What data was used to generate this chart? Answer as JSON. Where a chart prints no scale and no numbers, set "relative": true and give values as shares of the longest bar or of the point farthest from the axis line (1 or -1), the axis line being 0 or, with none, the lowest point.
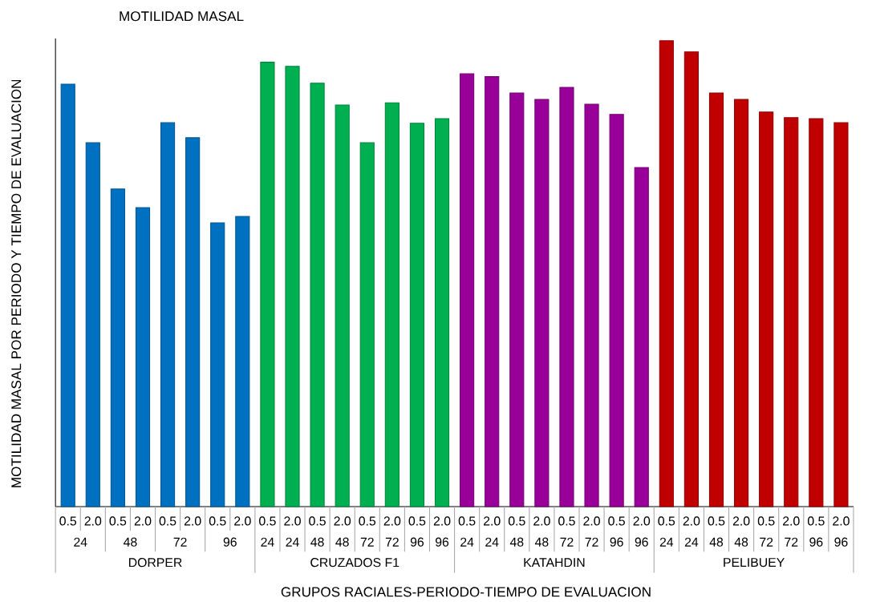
{
  "chart_data": {
    "type": "bar",
    "title": "MOTILIDAD MASAL",
    "xlabel": "GRUPOS RACIALES-PERIODO-TIEMPO DE EVALUACION",
    "ylabel": "MOTILIDAD MASAL POR PERIODO Y TIEMPO DE EVALUACION",
    "relative": true,
    "categories": [
      "0.5",
      "2.0",
      "0.5",
      "2.0",
      "0.5",
      "2.0",
      "0.5",
      "2.0",
      "0.5",
      "2.0",
      "0.5",
      "2.0",
      "0.5",
      "2.0",
      "0.5",
      "2.0",
      "0.5",
      "2.0",
      "0.5",
      "2.0",
      "0.5",
      "2.0",
      "0.5",
      "2.0",
      "0.5",
      "2.0",
      "0.5",
      "2.0",
      "0.5",
      "2.0",
      "0.5",
      "2.0"
    ],
    "annotations": [
      "24",
      "48",
      "72",
      "96",
      "24",
      "24",
      "48",
      "48",
      "72",
      "72",
      "96",
      "96",
      "24",
      "24",
      "48",
      "48",
      "72",
      "72",
      "96",
      "96",
      "24",
      "24",
      "48",
      "48",
      "72",
      "72",
      "96",
      "96"
    ],
    "series": [
      {
        "name": "DORPER",
        "color": "#0070c0",
        "values": [
          0.907,
          0.781,
          0.682,
          0.642,
          0.824,
          0.792,
          0.609,
          0.623,
          null,
          null,
          null,
          null,
          null,
          null,
          null,
          null,
          null,
          null,
          null,
          null,
          null,
          null,
          null,
          null,
          null,
          null,
          null,
          null,
          null,
          null,
          null,
          null
        ]
      },
      {
        "name": "CRUZADOS F1",
        "color": "#00b050",
        "values": [
          null,
          null,
          null,
          null,
          null,
          null,
          null,
          null,
          0.954,
          0.945,
          0.909,
          0.862,
          0.781,
          0.867,
          0.823,
          0.833,
          null,
          null,
          null,
          null,
          null,
          null,
          null,
          null,
          null,
          null,
          null,
          null,
          null,
          null,
          null,
          null
        ]
      },
      {
        "name": "KATAHDIN",
        "color": "#990099",
        "values": [
          null,
          null,
          null,
          null,
          null,
          null,
          null,
          null,
          null,
          null,
          null,
          null,
          null,
          null,
          null,
          null,
          0.929,
          0.923,
          0.888,
          0.874,
          0.9,
          0.864,
          0.842,
          0.728,
          null,
          null,
          null,
          null,
          null,
          null,
          null,
          null
        ]
      },
      {
        "name": "PELIBUEY",
        "color": "#c00000",
        "values": [
          null,
          null,
          null,
          null,
          null,
          null,
          null,
          null,
          null,
          null,
          null,
          null,
          null,
          null,
          null,
          null,
          null,
          null,
          null,
          null,
          null,
          null,
          null,
          null,
          1,
          0.976,
          0.888,
          0.874,
          0.847,
          0.835,
          0.833,
          0.824
        ]
      }
    ]
  }
}
